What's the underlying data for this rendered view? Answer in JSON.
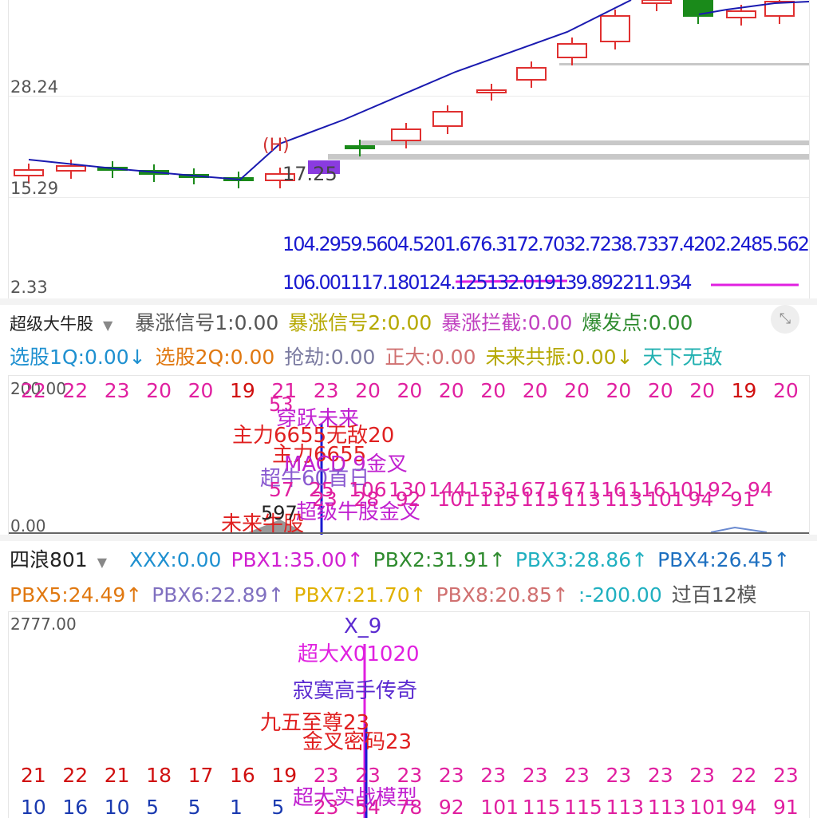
{
  "main_chart": {
    "price_labels": [
      "28.24",
      "15.29",
      "2.33"
    ],
    "annotation_marker": "(H)",
    "price_tag": "17.25",
    "overlay_row1": "104.2959.5604.5201.676.3172.7032.7238.7337.4202.2485.5625",
    "overlay_row2": "106.001117.180124.125132.019139.892211.934"
  },
  "indicator1": {
    "name": "超级大牛股",
    "values": [
      {
        "label": "暴涨信号1:",
        "value": "0.00",
        "color": "#555555"
      },
      {
        "label": "暴涨信号2:",
        "value": "0.00",
        "color": "#b5a800"
      },
      {
        "label": "暴涨拦截:",
        "value": "0.00",
        "color": "#c040c0"
      },
      {
        "label": "爆发点:",
        "value": "0.00",
        "color": "#2e8b2e"
      }
    ],
    "values2": [
      {
        "label": "选股1Q:",
        "value": "0.00↓",
        "color": "#1e90d0"
      },
      {
        "label": "选股2Q:",
        "value": "0.00",
        "color": "#e07810"
      },
      {
        "label": "抢劫:",
        "value": "0.00",
        "color": "#7a7aa0"
      },
      {
        "label": "正大:",
        "value": "0.00",
        "color": "#d07070"
      },
      {
        "label": "未来共振:",
        "value": "0.00↓",
        "color": "#b5a800"
      },
      {
        "label": "天下无敌",
        "value": "",
        "color": "#20b0b0"
      }
    ],
    "axis_top": "200.00",
    "axis_bottom": "0.00",
    "top_numbers": [
      "22",
      "22",
      "23",
      "20",
      "20",
      "19",
      "21",
      "23",
      "20",
      "20",
      "20",
      "20",
      "20",
      "20",
      "20",
      "20",
      "20",
      "19",
      "20"
    ],
    "mid_numbers": [
      "57",
      "25",
      "106",
      "130",
      "144",
      "153",
      "167",
      "167",
      "116",
      "116",
      "101",
      "92",
      "94"
    ],
    "low_numbers": [
      "23",
      "28",
      "92",
      "101",
      "115",
      "115",
      "113",
      "113",
      "101",
      "94",
      "91"
    ],
    "labels": [
      "53",
      "穿跃未来",
      "主力6655无敌20",
      "主力6655",
      "MACD 9金叉",
      "超牛60首日",
      "超级牛股金叉",
      "未来牛股",
      "597"
    ]
  },
  "indicator2": {
    "name": "四浪801",
    "values": [
      {
        "label": "XXX:",
        "value": "0.00",
        "color": "#1e90d0"
      },
      {
        "label": "PBX1:",
        "value": "35.00↑",
        "color": "#d020d0"
      },
      {
        "label": "PBX2:",
        "value": "31.91↑",
        "color": "#2e8b2e"
      },
      {
        "label": "PBX3:",
        "value": "28.86↑",
        "color": "#20b0c0"
      },
      {
        "label": "PBX4:",
        "value": "26.45↑",
        "color": "#1e70c0"
      }
    ],
    "values2": [
      {
        "label": "PBX5:",
        "value": "24.49↑",
        "color": "#e07810"
      },
      {
        "label": "PBX6:",
        "value": "22.89↑",
        "color": "#8070c0"
      },
      {
        "label": "PBX7:",
        "value": "21.70↑",
        "color": "#e0b000"
      },
      {
        "label": "PBX8:",
        "value": "20.85↑",
        "color": "#d07070"
      },
      {
        "label": ":",
        "value": "-200.00",
        "color": "#20b0c0"
      },
      {
        "label": "过百12模",
        "value": "",
        "color": "#555555"
      }
    ],
    "axis_top": "2777.00",
    "labels": [
      "X_9",
      "超大X01020",
      "寂寞高手传奇",
      "九五至尊23",
      "金叉密码23",
      "超大实战模型"
    ],
    "row_a": [
      "21",
      "22",
      "21",
      "18",
      "17",
      "16",
      "19",
      "23",
      "23",
      "23",
      "23",
      "23",
      "23",
      "23",
      "23",
      "23",
      "23",
      "22",
      "23"
    ],
    "row_b": [
      "10",
      "16",
      "10",
      "5",
      "5",
      "1",
      "5",
      "23",
      "54",
      "78",
      "92",
      "101",
      "115",
      "115",
      "113",
      "113",
      "101",
      "94",
      "91"
    ]
  },
  "colors": {
    "up": "#e03030",
    "down": "#1a8a1a",
    "line": "#1a1ab0",
    "magenta": "#e020e0"
  }
}
